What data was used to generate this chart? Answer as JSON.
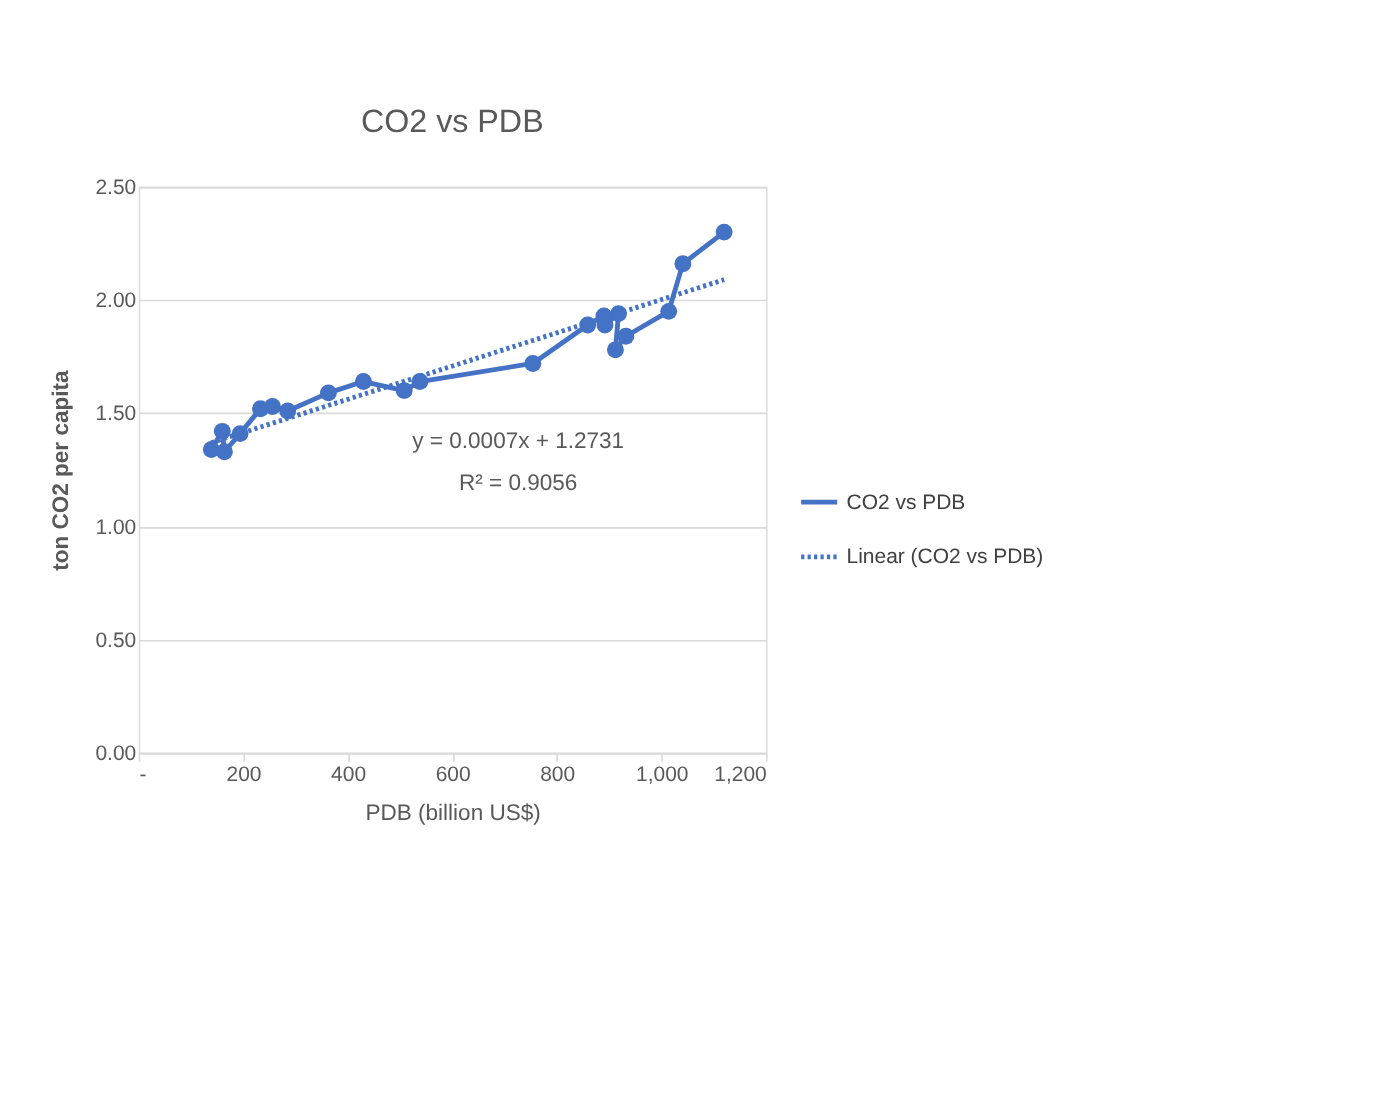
{
  "chart_data": {
    "type": "line",
    "title": "CO2 vs PDB",
    "xlabel": "PDB (billion US$)",
    "ylabel": "ton CO2 per capita",
    "x": [
      139,
      160,
      164,
      194,
      233,
      256,
      285,
      363,
      430,
      508,
      538,
      754,
      859,
      890,
      892,
      918,
      912,
      932,
      1014,
      1041,
      1120
    ],
    "series": [
      {
        "name": "CO2 vs PDB",
        "color": "#4472c4",
        "marker": "circle",
        "line_style": "solid",
        "values": [
          1.34,
          1.42,
          1.33,
          1.41,
          1.52,
          1.53,
          1.51,
          1.59,
          1.64,
          1.6,
          1.64,
          1.72,
          1.89,
          1.93,
          1.89,
          1.94,
          1.78,
          1.84,
          1.95,
          2.16,
          2.3
        ]
      },
      {
        "name": "Linear (CO2 vs PDB)",
        "type": "line",
        "color": "#4472c4",
        "marker": "none",
        "line_style": "dotted",
        "x": [
          139,
          1120
        ],
        "values": [
          1.37,
          2.09
        ]
      }
    ],
    "annotations": [
      "y = 0.0007x + 1.2731",
      "R² = 0.9056"
    ],
    "xlim": [
      0,
      1200
    ],
    "xticks": [
      {
        "value": 0,
        "label": "-"
      },
      200,
      400,
      600,
      800,
      {
        "value": 1000,
        "label": "1,000"
      },
      {
        "value": 1200,
        "label": "1,200"
      }
    ],
    "ylim": [
      0,
      2.5
    ],
    "yticks": [
      {
        "value": 0,
        "label": "0.00"
      },
      {
        "value": 0.5,
        "label": "0.50"
      },
      {
        "value": 1,
        "label": "1.00"
      },
      {
        "value": 1.5,
        "label": "1.50"
      },
      {
        "value": 2,
        "label": "2.00"
      },
      {
        "value": 2.5,
        "label": "2.50"
      }
    ],
    "grid": "y",
    "legend": "right"
  }
}
